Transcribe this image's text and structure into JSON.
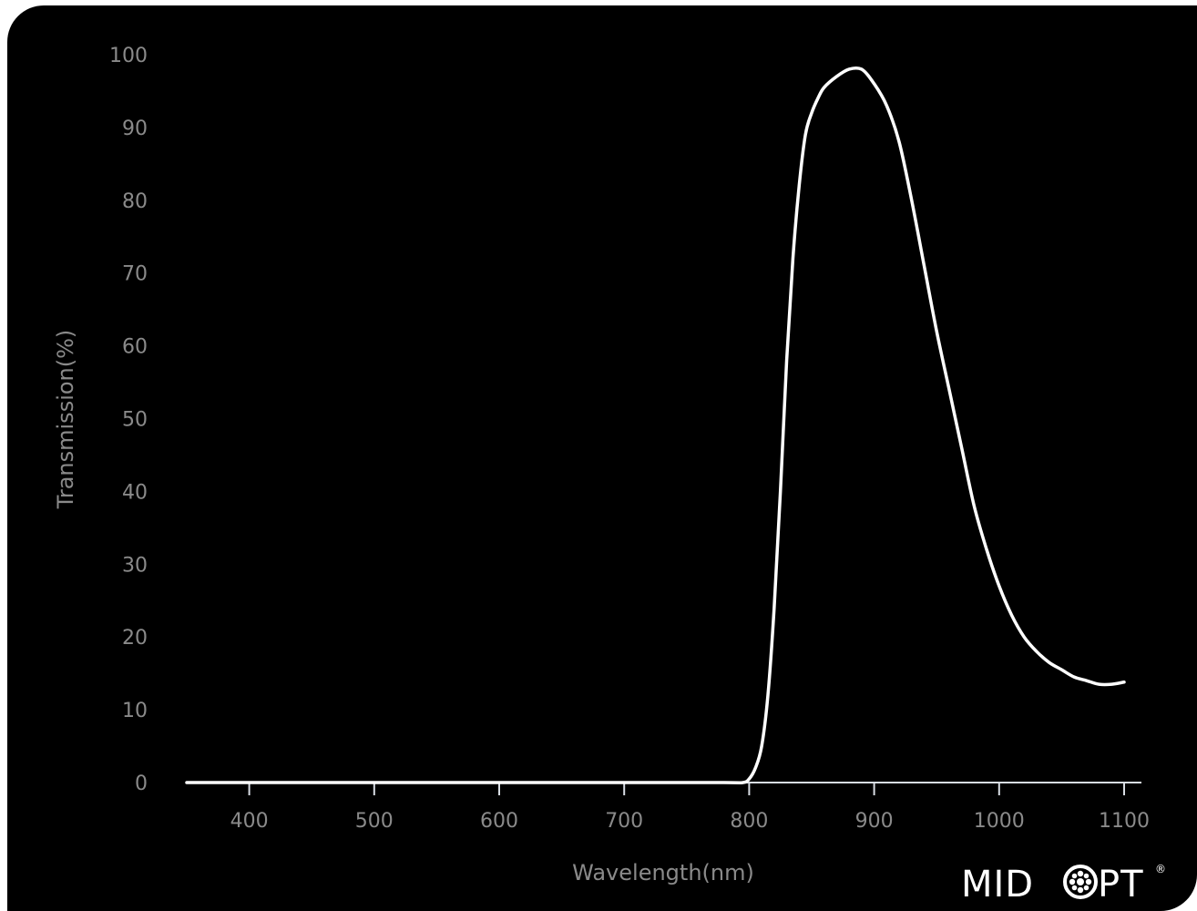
{
  "colors": {
    "background": "#000000",
    "curve": "#ffffff",
    "axis": "#d8dde4",
    "text": "#8a8a8a"
  },
  "logo": {
    "text_left": "MID",
    "text_right": "PT",
    "mark": "®"
  },
  "chart_data": {
    "type": "line",
    "title": "",
    "xlabel": "Wavelength(nm)",
    "ylabel": "Transmission(%)",
    "xlim": [
      350,
      1100
    ],
    "ylim": [
      0,
      100
    ],
    "xticks": [
      400,
      500,
      600,
      700,
      800,
      900,
      1000,
      1100
    ],
    "yticks": [
      0,
      10,
      20,
      30,
      40,
      50,
      60,
      70,
      80,
      90,
      100
    ],
    "grid": false,
    "series": [
      {
        "x": [
          350,
          400,
          500,
          600,
          700,
          780,
          795,
          800,
          805,
          810,
          815,
          820,
          825,
          830,
          835,
          840,
          845,
          850,
          855,
          860,
          870,
          880,
          890,
          900,
          910,
          920,
          930,
          940,
          950,
          960,
          970,
          980,
          990,
          1000,
          1010,
          1020,
          1030,
          1040,
          1050,
          1060,
          1070,
          1080,
          1090,
          1100
        ],
        "y": [
          0,
          0,
          0,
          0,
          0,
          0,
          0,
          0.5,
          2,
          5,
          12,
          24,
          40,
          58,
          72,
          82,
          89,
          92,
          94,
          95.5,
          97,
          98,
          98,
          96,
          93,
          88,
          80,
          71,
          62,
          54,
          46,
          38,
          32,
          27,
          23,
          20,
          18,
          16.5,
          15.5,
          14.5,
          14,
          13.5,
          13.5,
          13.8
        ]
      }
    ]
  }
}
